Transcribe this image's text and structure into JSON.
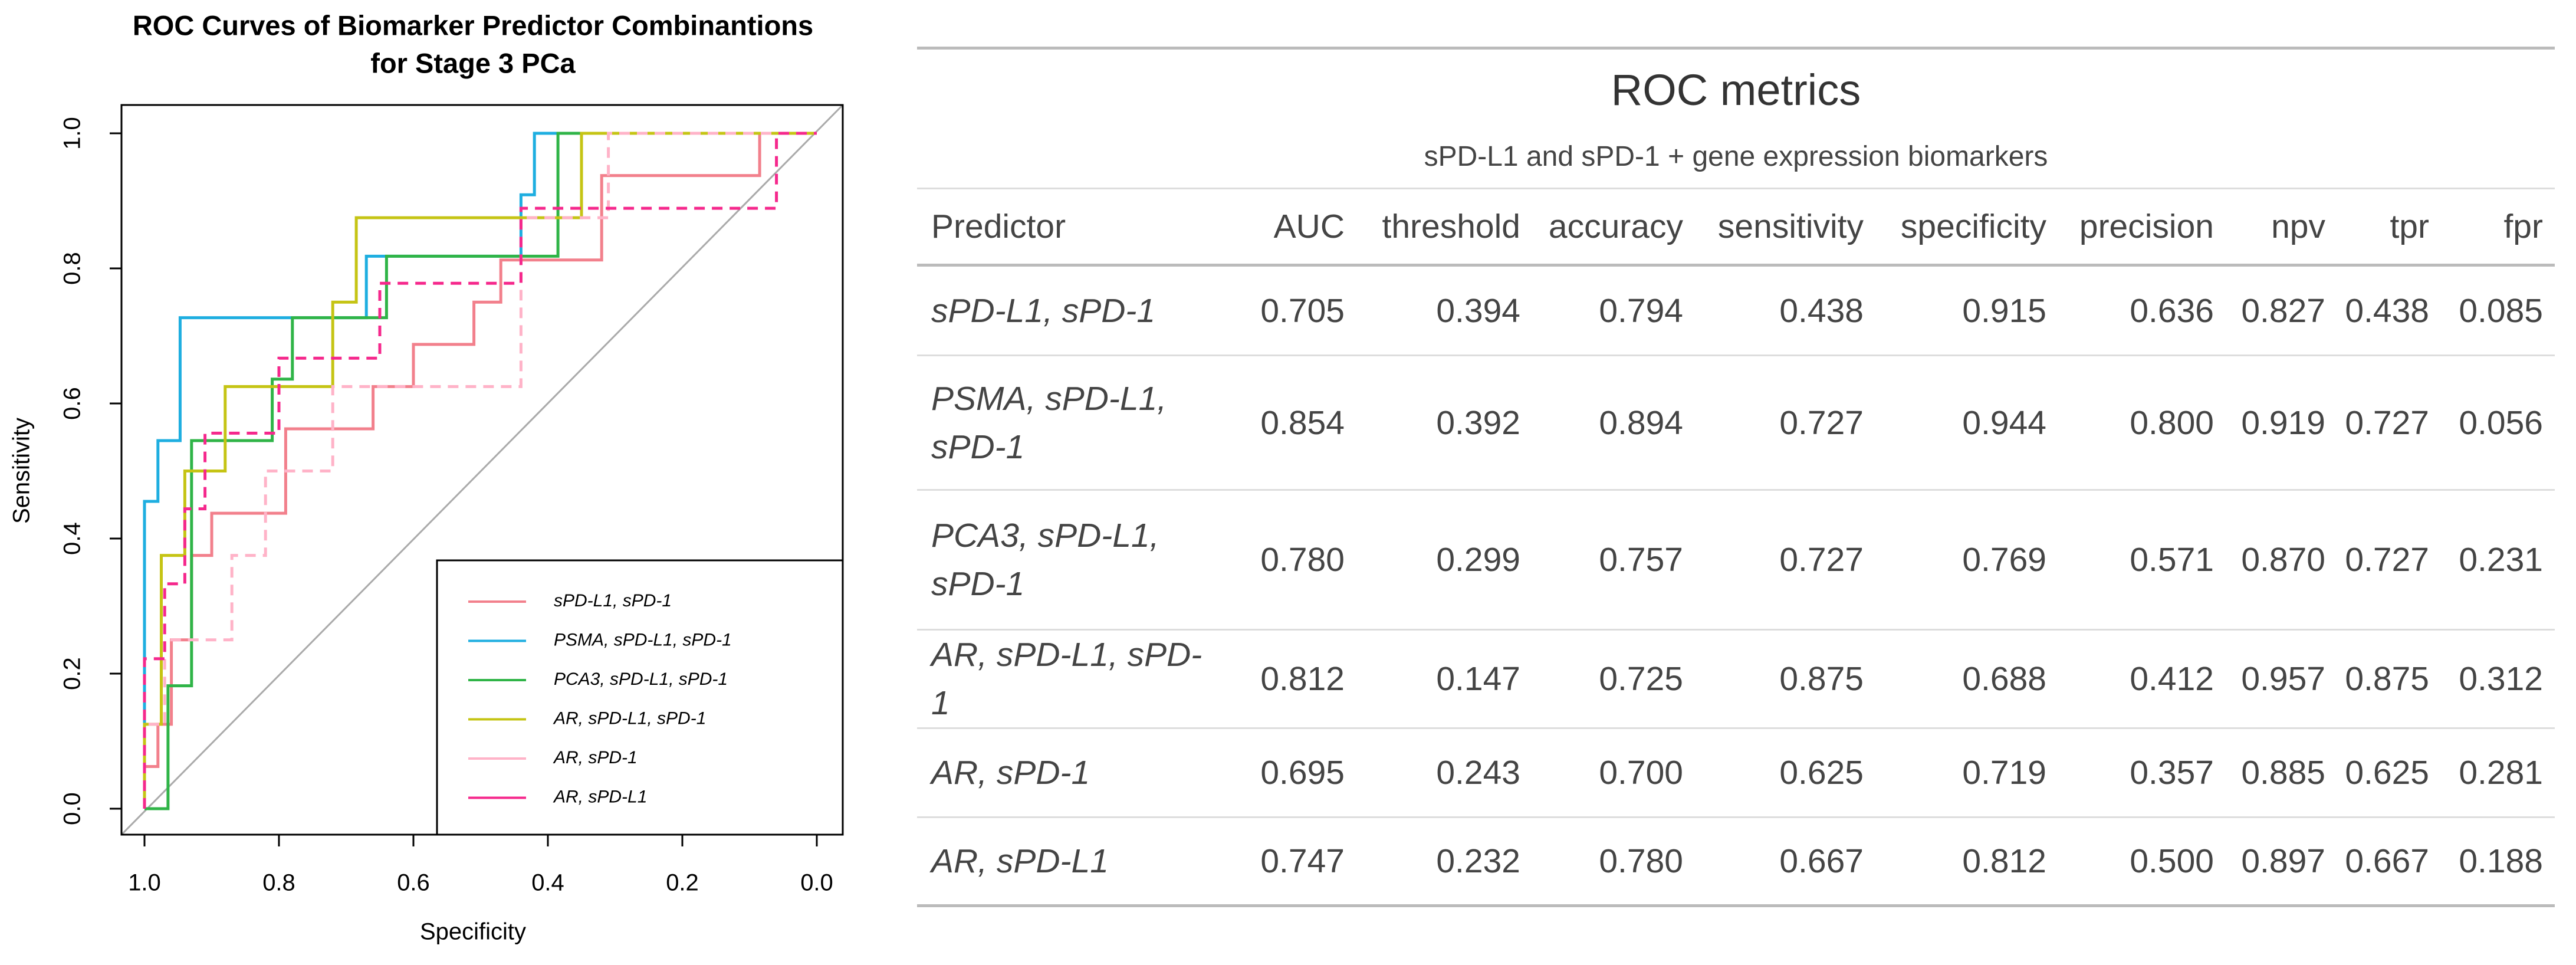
{
  "chart_data": {
    "type": "line",
    "title": [
      "ROC Curves of Biomarker Predictor Combinantions",
      "for Stage 3 PCa"
    ],
    "x_label": "Specificity",
    "y_label": "Sensitivity",
    "xlim": [
      1,
      0
    ],
    "ylim": [
      0,
      1
    ],
    "xticks": [
      {
        "value": 1,
        "label": "1.0"
      },
      {
        "value": 0.8,
        "label": "0.8"
      },
      {
        "value": 0.6,
        "label": "0.6"
      },
      {
        "value": 0.4,
        "label": "0.4"
      },
      {
        "value": 0.2,
        "label": "0.2"
      },
      {
        "value": 0,
        "label": "0.0"
      }
    ],
    "yticks": [
      {
        "value": 0,
        "label": "0.0"
      },
      {
        "value": 0.2,
        "label": "0.2"
      },
      {
        "value": 0.4,
        "label": "0.4"
      },
      {
        "value": 0.6,
        "label": "0.6"
      },
      {
        "value": 0.8,
        "label": "0.8"
      },
      {
        "value": 1,
        "label": "1.0"
      }
    ],
    "grid": false,
    "legend": "bottom-right",
    "series": [
      {
        "name": "sPD-L1, sPD-1",
        "color": "#f2808c",
        "dash": false,
        "x": [
          1,
          1,
          0.98,
          0.98,
          0.96,
          0.96,
          0.93,
          0.93,
          0.9,
          0.9,
          0.79,
          0.79,
          0.66,
          0.66,
          0.6,
          0.6,
          0.51,
          0.51,
          0.47,
          0.47,
          0.32,
          0.32,
          0.085,
          0.085,
          0
        ],
        "values": [
          0,
          0.0625,
          0.0625,
          0.125,
          0.125,
          0.25,
          0.25,
          0.375,
          0.375,
          0.4375,
          0.4375,
          0.5625,
          0.5625,
          0.625,
          0.625,
          0.6875,
          0.6875,
          0.75,
          0.75,
          0.8125,
          0.8125,
          0.9375,
          0.9375,
          1,
          1
        ]
      },
      {
        "name": "PSMA, sPD-L1, sPD-1",
        "color": "#1eaee0",
        "dash": false,
        "x": [
          1,
          1,
          0.98,
          0.98,
          0.947,
          0.947,
          0.67,
          0.67,
          0.44,
          0.44,
          0.42,
          0.42,
          0
        ],
        "values": [
          0,
          0.455,
          0.455,
          0.545,
          0.545,
          0.727,
          0.727,
          0.818,
          0.818,
          0.909,
          0.909,
          1,
          1
        ]
      },
      {
        "name": "PCA3, sPD-L1, sPD-1",
        "color": "#2fb447",
        "dash": false,
        "x": [
          1,
          0.965,
          0.965,
          0.93,
          0.93,
          0.81,
          0.81,
          0.78,
          0.78,
          0.64,
          0.64,
          0.385,
          0.385,
          0
        ],
        "values": [
          0,
          0,
          0.182,
          0.182,
          0.545,
          0.545,
          0.636,
          0.636,
          0.727,
          0.727,
          0.818,
          0.818,
          1,
          1
        ]
      },
      {
        "name": "AR, sPD-L1, sPD-1",
        "color": "#c5c414",
        "dash": false,
        "x": [
          1,
          1,
          0.975,
          0.975,
          0.94,
          0.94,
          0.88,
          0.88,
          0.72,
          0.72,
          0.685,
          0.685,
          0.35,
          0.35,
          0
        ],
        "values": [
          0,
          0.125,
          0.125,
          0.375,
          0.375,
          0.5,
          0.5,
          0.625,
          0.625,
          0.75,
          0.75,
          0.875,
          0.875,
          1,
          1
        ]
      },
      {
        "name": "AR, sPD-1",
        "color": "#ffb3c8",
        "dash": true,
        "x": [
          1,
          1,
          0.97,
          0.97,
          0.87,
          0.87,
          0.82,
          0.82,
          0.72,
          0.72,
          0.44,
          0.44,
          0.31,
          0.31,
          0
        ],
        "values": [
          0,
          0.125,
          0.125,
          0.25,
          0.25,
          0.375,
          0.375,
          0.5,
          0.5,
          0.625,
          0.625,
          0.875,
          0.875,
          1,
          1
        ]
      },
      {
        "name": "AR, sPD-L1",
        "color": "#f5288c",
        "dash": true,
        "x": [
          1,
          1,
          0.97,
          0.97,
          0.94,
          0.94,
          0.91,
          0.91,
          0.8,
          0.8,
          0.65,
          0.65,
          0.44,
          0.44,
          0.06,
          0.06,
          0
        ],
        "values": [
          0,
          0.222,
          0.222,
          0.333,
          0.333,
          0.444,
          0.444,
          0.556,
          0.556,
          0.667,
          0.667,
          0.778,
          0.778,
          0.889,
          0.889,
          1,
          1
        ]
      }
    ]
  },
  "table": {
    "title": "ROC metrics",
    "subtitle": "sPD-L1 and sPD-1 + gene expression biomarkers",
    "columns": [
      "Predictor",
      "AUC",
      "threshold",
      "accuracy",
      "sensitivity",
      "specificity",
      "precision",
      "npv",
      "tpr",
      "fpr"
    ],
    "rows": [
      [
        "sPD-L1, sPD-1",
        "0.705",
        "0.394",
        "0.794",
        "0.438",
        "0.915",
        "0.636",
        "0.827",
        "0.438",
        "0.085"
      ],
      [
        "PSMA, sPD-L1, sPD-1",
        "0.854",
        "0.392",
        "0.894",
        "0.727",
        "0.944",
        "0.800",
        "0.919",
        "0.727",
        "0.056"
      ],
      [
        "PCA3, sPD-L1, sPD-1",
        "0.780",
        "0.299",
        "0.757",
        "0.727",
        "0.769",
        "0.571",
        "0.870",
        "0.727",
        "0.231"
      ],
      [
        "AR, sPD-L1, sPD-1",
        "0.812",
        "0.147",
        "0.725",
        "0.875",
        "0.688",
        "0.412",
        "0.957",
        "0.875",
        "0.312"
      ],
      [
        "AR, sPD-1",
        "0.695",
        "0.243",
        "0.700",
        "0.625",
        "0.719",
        "0.357",
        "0.885",
        "0.625",
        "0.281"
      ],
      [
        "AR, sPD-L1",
        "0.747",
        "0.232",
        "0.780",
        "0.667",
        "0.812",
        "0.500",
        "0.897",
        "0.667",
        "0.188"
      ]
    ]
  }
}
